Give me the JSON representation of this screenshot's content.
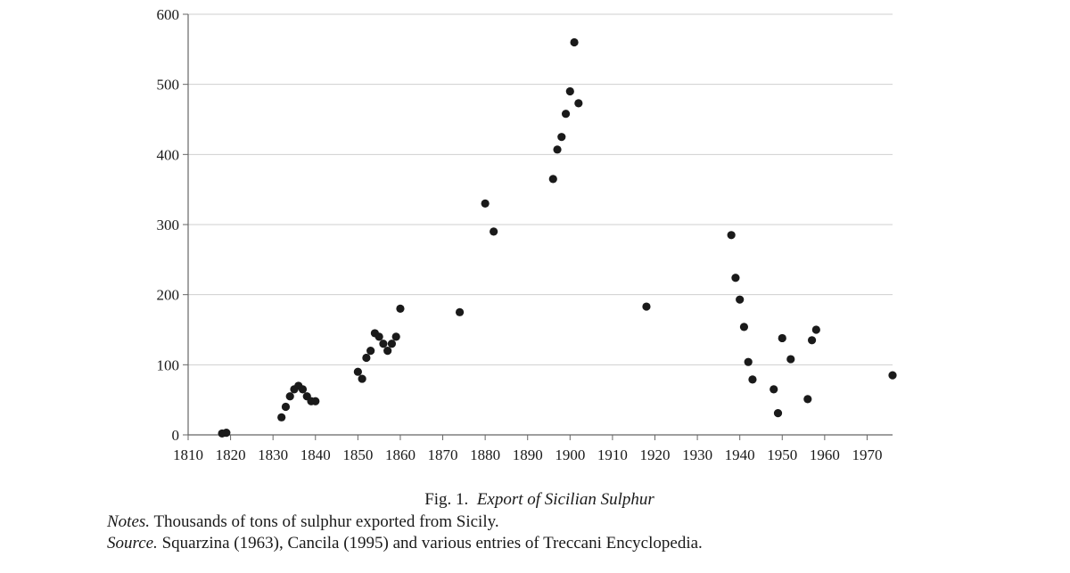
{
  "chart_data": {
    "type": "scatter",
    "title": "",
    "xlabel": "",
    "ylabel": "",
    "xlim": [
      1810,
      1976
    ],
    "ylim": [
      0,
      600
    ],
    "x_ticks": [
      1810,
      1820,
      1830,
      1840,
      1850,
      1860,
      1870,
      1880,
      1890,
      1900,
      1910,
      1920,
      1930,
      1940,
      1950,
      1960,
      1970
    ],
    "y_ticks": [
      0,
      100,
      200,
      300,
      400,
      500,
      600
    ],
    "grid": "horizontal",
    "marker_color": "#1a1a1a",
    "points": [
      [
        1818,
        2
      ],
      [
        1819,
        3
      ],
      [
        1832,
        25
      ],
      [
        1833,
        40
      ],
      [
        1834,
        55
      ],
      [
        1835,
        65
      ],
      [
        1836,
        70
      ],
      [
        1837,
        65
      ],
      [
        1838,
        55
      ],
      [
        1839,
        48
      ],
      [
        1840,
        48
      ],
      [
        1850,
        90
      ],
      [
        1851,
        80
      ],
      [
        1852,
        110
      ],
      [
        1853,
        120
      ],
      [
        1854,
        145
      ],
      [
        1855,
        140
      ],
      [
        1856,
        130
      ],
      [
        1857,
        120
      ],
      [
        1858,
        130
      ],
      [
        1859,
        140
      ],
      [
        1860,
        180
      ],
      [
        1874,
        175
      ],
      [
        1880,
        330
      ],
      [
        1882,
        290
      ],
      [
        1896,
        365
      ],
      [
        1897,
        407
      ],
      [
        1898,
        425
      ],
      [
        1899,
        458
      ],
      [
        1900,
        490
      ],
      [
        1901,
        560
      ],
      [
        1902,
        473
      ],
      [
        1918,
        183
      ],
      [
        1938,
        285
      ],
      [
        1939,
        224
      ],
      [
        1940,
        193
      ],
      [
        1941,
        154
      ],
      [
        1942,
        104
      ],
      [
        1943,
        79
      ],
      [
        1948,
        65
      ],
      [
        1949,
        31
      ],
      [
        1950,
        138
      ],
      [
        1952,
        108
      ],
      [
        1956,
        51
      ],
      [
        1957,
        135
      ],
      [
        1958,
        150
      ],
      [
        1976,
        85
      ]
    ]
  },
  "caption": {
    "figure_label": "Fig. 1.",
    "figure_title": "Export of Sicilian Sulphur",
    "notes_prefix": "Notes.",
    "notes_text": "Thousands of tons of sulphur exported from Sicily.",
    "source_prefix": "Source.",
    "source_text": "Squarzina (1963), Cancila (1995) and various entries of Treccani Encyclopedia."
  }
}
